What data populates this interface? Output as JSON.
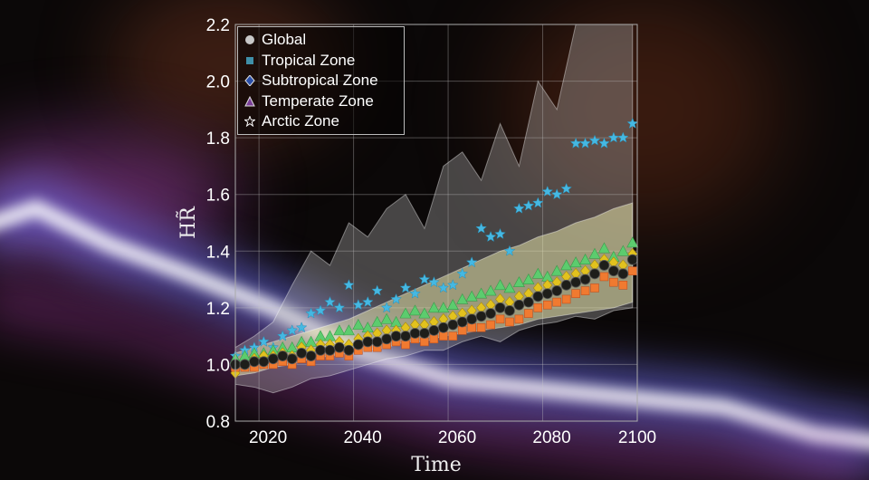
{
  "chart_data": {
    "type": "scatter",
    "xlabel": "Time",
    "ylabel": "HR̃",
    "xlim": [
      2015,
      2100
    ],
    "ylim": [
      0.8,
      2.2
    ],
    "xticks": [
      2020,
      2040,
      2060,
      2080,
      2100
    ],
    "yticks": [
      0.8,
      1.0,
      1.2,
      1.4,
      1.6,
      1.8,
      2.0,
      2.2
    ],
    "grid": true,
    "legend_position": "top-left",
    "x": [
      2015,
      2017,
      2019,
      2021,
      2023,
      2025,
      2027,
      2029,
      2031,
      2033,
      2035,
      2037,
      2039,
      2041,
      2043,
      2045,
      2047,
      2049,
      2051,
      2053,
      2055,
      2057,
      2059,
      2061,
      2063,
      2065,
      2067,
      2069,
      2071,
      2073,
      2075,
      2077,
      2079,
      2081,
      2083,
      2085,
      2087,
      2089,
      2091,
      2093,
      2095,
      2097,
      2099
    ],
    "series": [
      {
        "name": "Global",
        "marker": "circle",
        "color": "#1e1e1a",
        "legend_color": "#c8c8c8",
        "values": [
          1.0,
          1.0,
          1.01,
          1.01,
          1.02,
          1.03,
          1.02,
          1.04,
          1.03,
          1.05,
          1.05,
          1.06,
          1.05,
          1.07,
          1.08,
          1.08,
          1.09,
          1.1,
          1.1,
          1.11,
          1.11,
          1.12,
          1.13,
          1.14,
          1.15,
          1.16,
          1.17,
          1.18,
          1.2,
          1.19,
          1.21,
          1.22,
          1.24,
          1.25,
          1.26,
          1.28,
          1.29,
          1.3,
          1.32,
          1.35,
          1.33,
          1.32,
          1.37
        ]
      },
      {
        "name": "Tropical Zone",
        "marker": "square",
        "color": "#f07a30",
        "legend_color": "#3f8fa8",
        "values": [
          0.99,
          0.99,
          0.99,
          1.0,
          1.0,
          1.01,
          1.0,
          1.02,
          1.01,
          1.03,
          1.03,
          1.04,
          1.03,
          1.05,
          1.06,
          1.06,
          1.07,
          1.08,
          1.07,
          1.09,
          1.08,
          1.09,
          1.1,
          1.1,
          1.12,
          1.13,
          1.13,
          1.14,
          1.16,
          1.15,
          1.16,
          1.18,
          1.2,
          1.21,
          1.22,
          1.23,
          1.25,
          1.26,
          1.27,
          1.31,
          1.29,
          1.28,
          1.33
        ]
      },
      {
        "name": "Subtropical Zone",
        "marker": "diamond",
        "color": "#e2c21e",
        "legend_color": "#2a4fa8",
        "values": [
          0.97,
          1.0,
          1.02,
          1.03,
          1.03,
          1.04,
          1.03,
          1.06,
          1.05,
          1.07,
          1.07,
          1.08,
          1.07,
          1.09,
          1.1,
          1.11,
          1.12,
          1.12,
          1.13,
          1.14,
          1.14,
          1.15,
          1.16,
          1.17,
          1.18,
          1.19,
          1.2,
          1.21,
          1.23,
          1.22,
          1.24,
          1.25,
          1.27,
          1.28,
          1.29,
          1.31,
          1.32,
          1.33,
          1.35,
          1.37,
          1.36,
          1.35,
          1.39
        ]
      },
      {
        "name": "Temperate Zone",
        "marker": "triangle",
        "color": "#5ccc6e",
        "legend_color": "#7a3f98",
        "values": [
          1.02,
          1.03,
          1.04,
          1.04,
          1.05,
          1.06,
          1.06,
          1.08,
          1.08,
          1.1,
          1.1,
          1.12,
          1.12,
          1.14,
          1.13,
          1.15,
          1.16,
          1.15,
          1.18,
          1.19,
          1.18,
          1.2,
          1.2,
          1.21,
          1.23,
          1.24,
          1.25,
          1.26,
          1.28,
          1.27,
          1.29,
          1.3,
          1.32,
          1.31,
          1.33,
          1.35,
          1.36,
          1.37,
          1.39,
          1.41,
          1.38,
          1.4,
          1.43
        ]
      },
      {
        "name": "Arctic Zone",
        "marker": "star",
        "color": "#45b8e2",
        "legend_color": "#ffffff",
        "values": [
          1.03,
          1.05,
          1.06,
          1.08,
          1.06,
          1.1,
          1.12,
          1.13,
          1.18,
          1.19,
          1.22,
          1.2,
          1.28,
          1.21,
          1.22,
          1.26,
          1.2,
          1.23,
          1.27,
          1.25,
          1.3,
          1.29,
          1.27,
          1.28,
          1.32,
          1.36,
          1.48,
          1.45,
          1.46,
          1.4,
          1.55,
          1.56,
          1.57,
          1.61,
          1.6,
          1.62,
          1.78,
          1.78,
          1.79,
          1.78,
          1.8,
          1.8,
          1.85
        ]
      }
    ],
    "bands": [
      {
        "name": "arctic-range",
        "color": "#b8b8b8",
        "x": [
          2015,
          2019,
          2023,
          2027,
          2031,
          2035,
          2039,
          2043,
          2047,
          2051,
          2055,
          2059,
          2063,
          2067,
          2071,
          2075,
          2079,
          2083,
          2087,
          2091,
          2095,
          2099
        ],
        "upper": [
          1.06,
          1.1,
          1.15,
          1.28,
          1.4,
          1.35,
          1.5,
          1.45,
          1.55,
          1.6,
          1.48,
          1.7,
          1.75,
          1.65,
          1.85,
          1.7,
          2.0,
          1.9,
          2.2,
          2.2,
          2.2,
          2.2
        ],
        "lower": [
          0.93,
          0.92,
          0.9,
          0.92,
          0.95,
          0.96,
          0.98,
          1.0,
          1.02,
          1.03,
          1.05,
          1.05,
          1.08,
          1.1,
          1.08,
          1.12,
          1.14,
          1.15,
          1.17,
          1.16,
          1.19,
          1.2
        ]
      },
      {
        "name": "zone-range",
        "color": "#f2f0b0",
        "x": [
          2015,
          2019,
          2023,
          2027,
          2031,
          2035,
          2039,
          2043,
          2047,
          2051,
          2055,
          2059,
          2063,
          2067,
          2071,
          2075,
          2079,
          2083,
          2087,
          2091,
          2095,
          2099
        ],
        "upper": [
          1.04,
          1.06,
          1.08,
          1.1,
          1.12,
          1.14,
          1.16,
          1.19,
          1.22,
          1.25,
          1.28,
          1.31,
          1.34,
          1.37,
          1.4,
          1.42,
          1.45,
          1.47,
          1.5,
          1.52,
          1.55,
          1.57
        ],
        "lower": [
          0.96,
          0.97,
          0.99,
          1.0,
          1.02,
          1.03,
          1.04,
          1.05,
          1.06,
          1.08,
          1.08,
          1.1,
          1.11,
          1.12,
          1.13,
          1.14,
          1.16,
          1.17,
          1.18,
          1.19,
          1.2,
          1.22
        ]
      }
    ]
  }
}
